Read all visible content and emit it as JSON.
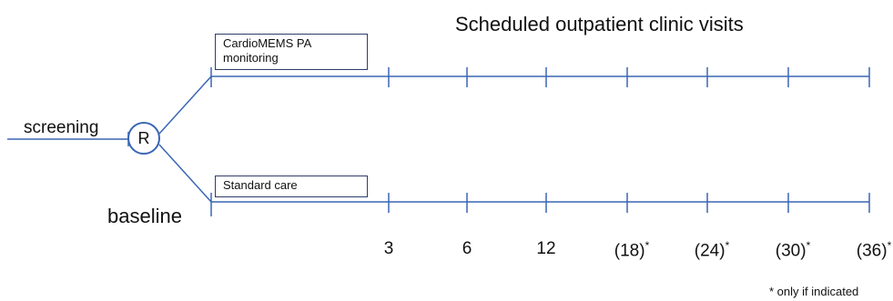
{
  "title": "Scheduled outpatient clinic visits",
  "screening_label": "screening",
  "randomization_label": "R",
  "baseline_label": "baseline",
  "arms": [
    {
      "label": "CardioMEMS PA monitoring"
    },
    {
      "label": "Standard care"
    }
  ],
  "timepoints": [
    {
      "label": "3",
      "optional": false
    },
    {
      "label": "6",
      "optional": false
    },
    {
      "label": "12",
      "optional": false
    },
    {
      "label": "(18)",
      "optional": true
    },
    {
      "label": "(24)",
      "optional": true
    },
    {
      "label": "(30)",
      "optional": true
    },
    {
      "label": "(36)",
      "optional": true
    }
  ],
  "asterisk": "*",
  "footnote": "* only if indicated",
  "colors": {
    "line": "#3a66b4",
    "box_border": "#2f3d6b"
  }
}
